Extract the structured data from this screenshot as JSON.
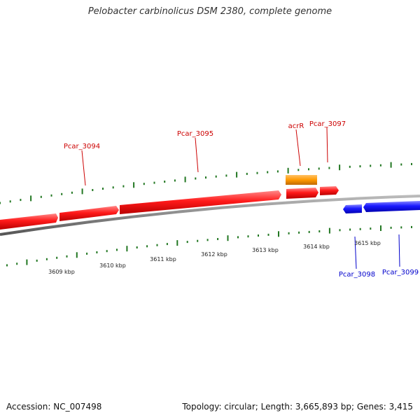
{
  "title": "Pelobacter carbinolicus DSM 2380, complete genome",
  "footer": {
    "accession": "Accession: NC_007498",
    "summary": "Topology: circular; Length: 3,665,893 bp; Genes: 3,415"
  },
  "colors": {
    "forward_gene": "#ff1a1a",
    "reverse_gene": "#1a1aff",
    "rna_gene": "#ff9900",
    "backbone": "#888888",
    "tick": "#227722",
    "forward_label": "#cc0000",
    "reverse_label": "#0000cc"
  },
  "scale_labels": [
    "3609 kbp",
    "3610 kbp",
    "3611 kbp",
    "3612 kbp",
    "3613 kbp",
    "3614 kbp",
    "3615 kbp"
  ],
  "genes": [
    {
      "name": "",
      "strand": "forward"
    },
    {
      "name": "Pcar_3094",
      "strand": "forward"
    },
    {
      "name": "Pcar_3095",
      "strand": "forward"
    },
    {
      "name": "acrR",
      "strand": "forward",
      "type": "rna"
    },
    {
      "name": "",
      "strand": "forward"
    },
    {
      "name": "Pcar_3097",
      "strand": "forward"
    },
    {
      "name": "Pcar_3098",
      "strand": "reverse"
    },
    {
      "name": "Pcar_3099",
      "strand": "reverse"
    }
  ]
}
